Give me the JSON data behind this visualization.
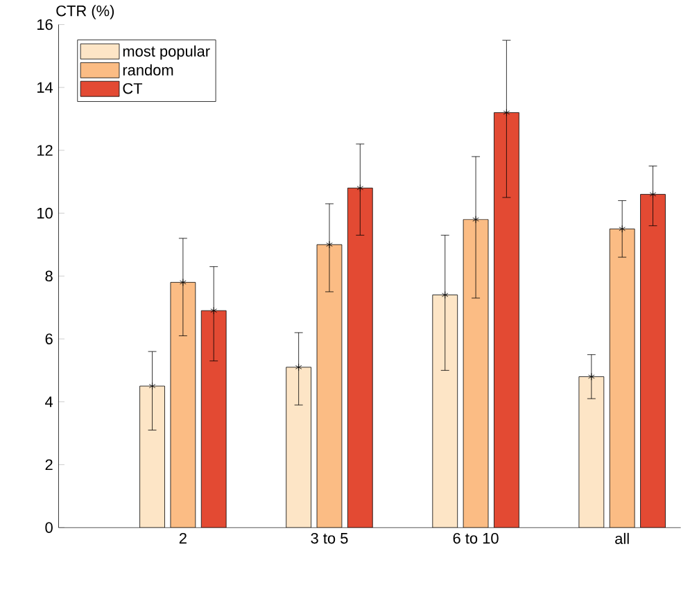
{
  "chart_data": {
    "type": "bar",
    "ylabel": "CTR (%)",
    "categories": [
      "2",
      "3 to 5",
      "6 to 10",
      "all"
    ],
    "series": [
      {
        "name": "most popular",
        "color": "#fde5c6",
        "values": [
          4.5,
          5.1,
          7.4,
          4.8
        ],
        "errors": [
          [
            3.1,
            5.6
          ],
          [
            3.9,
            6.2
          ],
          [
            5.0,
            9.3
          ],
          [
            4.1,
            5.5
          ]
        ]
      },
      {
        "name": "random",
        "color": "#fbbc84",
        "values": [
          7.8,
          9.0,
          9.8,
          9.5
        ],
        "errors": [
          [
            6.1,
            9.2
          ],
          [
            7.5,
            10.3
          ],
          [
            7.3,
            11.8
          ],
          [
            8.6,
            10.4
          ]
        ]
      },
      {
        "name": "CT",
        "color": "#e34a33",
        "values": [
          6.9,
          10.8,
          13.2,
          10.6
        ],
        "errors": [
          [
            5.3,
            8.3
          ],
          [
            9.3,
            12.2
          ],
          [
            10.5,
            15.5
          ],
          [
            9.6,
            11.5
          ]
        ]
      }
    ],
    "ylim": [
      0,
      16
    ],
    "yticks": [
      0,
      2,
      4,
      6,
      8,
      10,
      12,
      14,
      16
    ],
    "grid": false,
    "legend": "top left",
    "marker": "star"
  }
}
